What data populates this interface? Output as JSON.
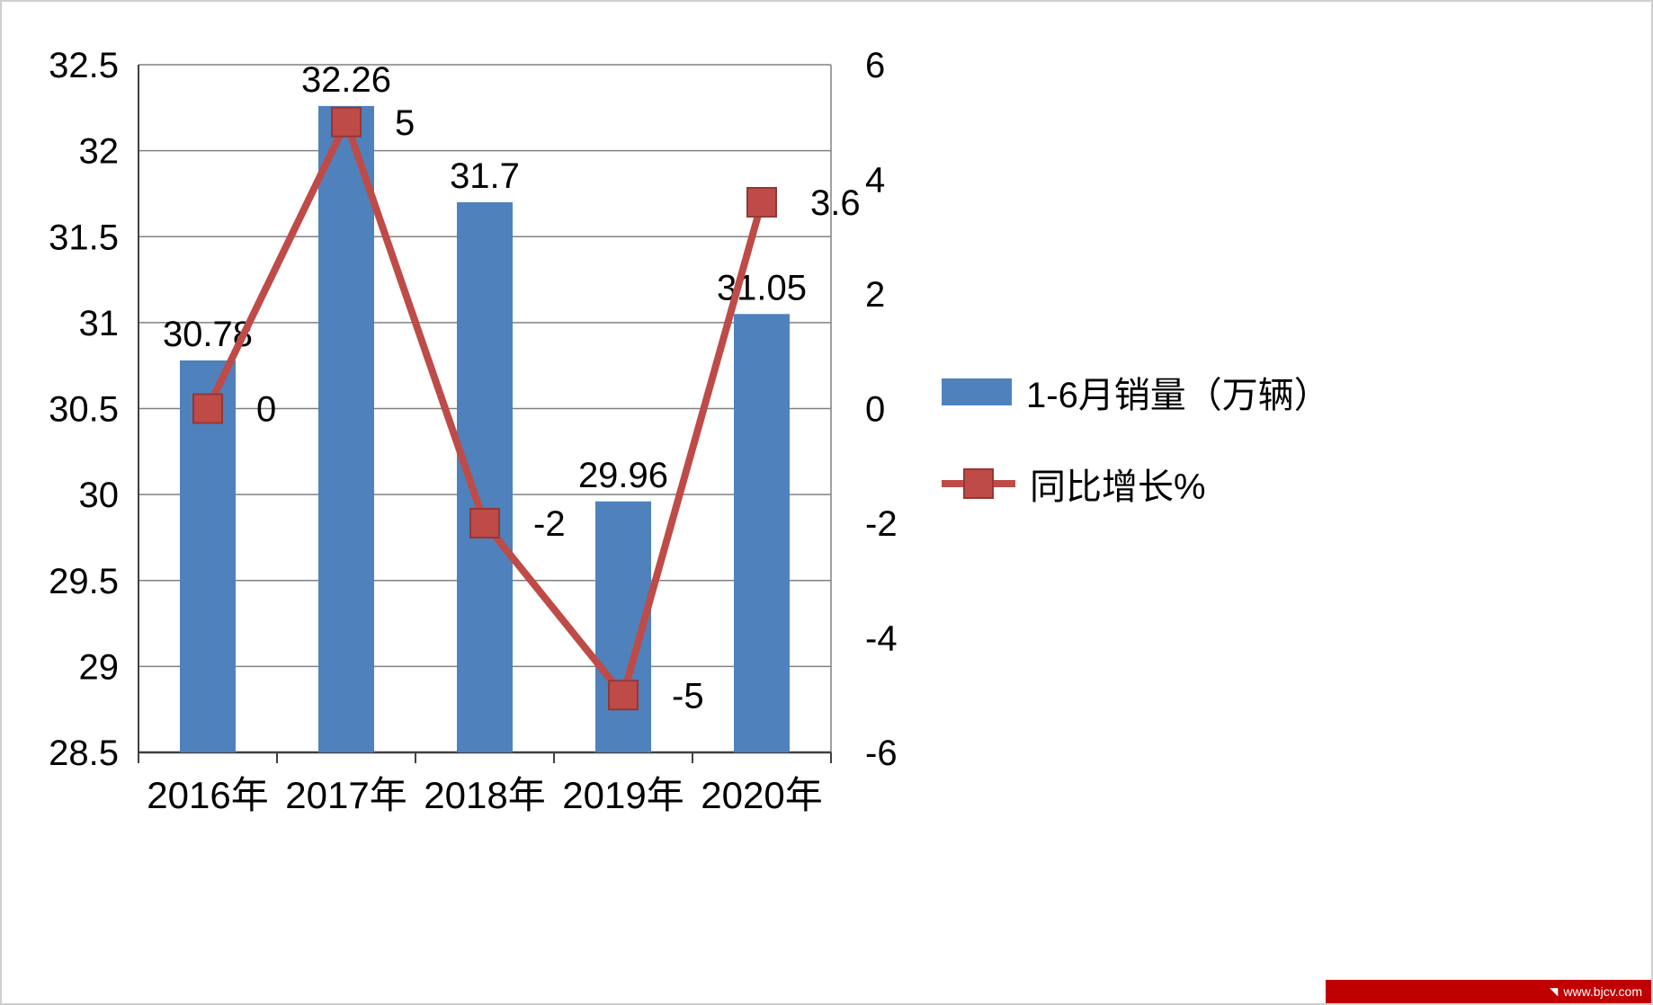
{
  "chart_data": {
    "type": "combo",
    "categories": [
      "2016年",
      "2017年",
      "2018年",
      "2019年",
      "2020年"
    ],
    "series": [
      {
        "name": "1-6月销量（万辆）",
        "type": "bar",
        "axis": "left",
        "color": "#4F81BD",
        "values": [
          30.78,
          32.26,
          31.7,
          29.96,
          31.05
        ],
        "labels": [
          "30.78",
          "32.26",
          "31.7",
          "29.96",
          "31.05"
        ]
      },
      {
        "name": "同比增长%",
        "type": "line",
        "axis": "right",
        "color": "#BE4B48",
        "marker": "square",
        "marker_border": "#953735",
        "values": [
          0,
          5,
          -2,
          -5,
          3.6
        ],
        "labels": [
          "0",
          "5",
          "-2",
          "-5",
          "3.6"
        ]
      }
    ],
    "left_axis": {
      "min": 28.5,
      "max": 32.5,
      "step": 0.5,
      "ticks": [
        "28.5",
        "29",
        "29.5",
        "30",
        "30.5",
        "31",
        "31.5",
        "32",
        "32.5"
      ]
    },
    "right_axis": {
      "min": -6,
      "max": 6,
      "step": 2,
      "ticks": [
        "-6",
        "-4",
        "-2",
        "0",
        "2",
        "4",
        "6"
      ]
    },
    "grid": true,
    "grid_color": "#808080",
    "axis_color": "#404040",
    "legend_position": "right",
    "title": "",
    "xlabel": "",
    "ylabel": ""
  },
  "legend": {
    "items": [
      {
        "label": "1-6月销量（万辆）"
      },
      {
        "label": "同比增长%"
      }
    ]
  },
  "watermark": {
    "text": "www.bjcv.com"
  }
}
